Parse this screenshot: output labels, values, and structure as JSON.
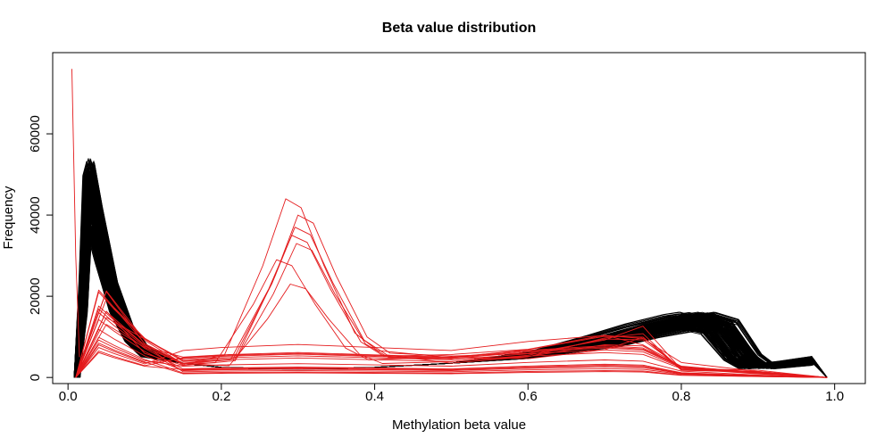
{
  "chart_data": {
    "type": "line",
    "title": "Beta value distribution",
    "xlabel": "Methylation beta value",
    "ylabel": "Frequency",
    "xlim": [
      -0.02,
      1.04
    ],
    "ylim": [
      -1500,
      80000
    ],
    "xticks": [
      0.0,
      0.2,
      0.4,
      0.6,
      0.8,
      1.0
    ],
    "xtick_labels": [
      "0.0",
      "0.2",
      "0.4",
      "0.6",
      "0.8",
      "1.0"
    ],
    "yticks": [
      0,
      20000,
      40000,
      60000
    ],
    "ytick_labels": [
      "0",
      "20000",
      "40000",
      "60000"
    ],
    "grid": false,
    "legend": "none",
    "colors": {
      "black": "#000000",
      "red": "#e41a1c"
    },
    "black_series_count": 180,
    "representative_black": {
      "x": [
        0.01,
        0.02,
        0.025,
        0.03,
        0.04,
        0.05,
        0.06,
        0.08,
        0.1,
        0.15,
        0.2,
        0.3,
        0.4,
        0.5,
        0.6,
        0.7,
        0.75,
        0.8,
        0.82,
        0.85,
        0.88,
        0.9,
        0.95,
        0.97,
        0.99
      ],
      "y": [
        0,
        20000,
        42000,
        45000,
        36000,
        28000,
        20000,
        11000,
        6500,
        3500,
        2500,
        2000,
        2500,
        3500,
        5500,
        9000,
        11500,
        13500,
        14000,
        12500,
        5000,
        2500,
        3500,
        4500,
        0
      ]
    },
    "representative_red_peak": {
      "x": [
        0.01,
        0.05,
        0.1,
        0.15,
        0.2,
        0.25,
        0.28,
        0.3,
        0.33,
        0.37,
        0.4,
        0.5,
        0.6,
        0.7,
        0.75,
        0.8,
        0.9,
        0.99
      ],
      "y": [
        0,
        18000,
        8000,
        3500,
        5000,
        25000,
        40000,
        38000,
        25000,
        10000,
        6000,
        5000,
        6000,
        9000,
        11000,
        2500,
        1500,
        0
      ]
    },
    "red_spike": {
      "x": [
        0.005,
        0.01,
        0.015
      ],
      "y": [
        76000,
        30000,
        5000
      ]
    },
    "red_peak_heights": [
      44000,
      40000,
      37000,
      35000,
      33000,
      29000,
      23000
    ],
    "red_peak_positions": [
      0.284,
      0.3,
      0.296,
      0.292,
      0.298,
      0.272,
      0.29
    ]
  }
}
